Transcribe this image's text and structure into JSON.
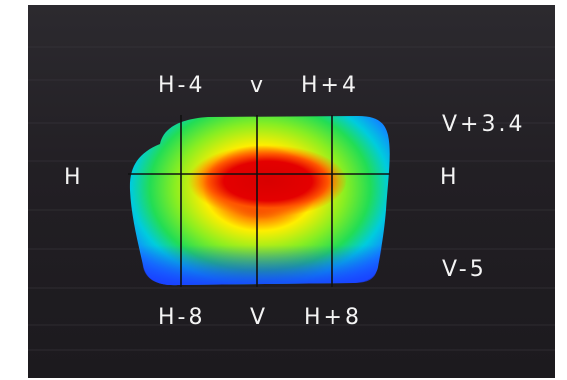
{
  "labels": {
    "h_minus_4": "H-4",
    "v_top": "v",
    "h_plus_4": "H+4",
    "v_plus_3_4": "V+3.4",
    "h_left": "H",
    "h_right": "H",
    "v_minus_5": "V-5",
    "h_minus_8": "H-8",
    "v_bottom": "V",
    "h_plus_8": "H+8"
  },
  "colors": {
    "background": "#252228",
    "grid": "#101010",
    "hot": "#e00000",
    "cold": "#1a3cff"
  }
}
